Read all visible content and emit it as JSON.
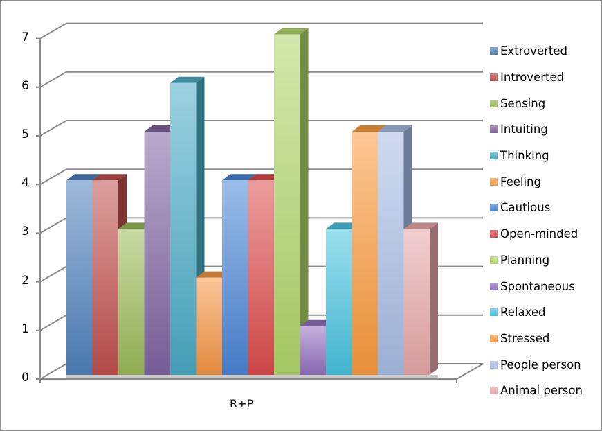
{
  "chart_data": {
    "type": "bar",
    "title": "",
    "xlabel": "",
    "ylabel": "",
    "categories": [
      "R+P"
    ],
    "ylim": [
      0,
      7
    ],
    "yticks": [
      0,
      1,
      2,
      3,
      4,
      5,
      6,
      7
    ],
    "grid": true,
    "legend_position": "right",
    "style": "3d-clustered-column",
    "series": [
      {
        "name": "Extroverted",
        "values": [
          4
        ],
        "color": "#4f81bd"
      },
      {
        "name": "Introverted",
        "values": [
          4
        ],
        "color": "#c0504d"
      },
      {
        "name": "Sensing",
        "values": [
          3
        ],
        "color": "#9bbb59"
      },
      {
        "name": "Intuiting",
        "values": [
          5
        ],
        "color": "#8064a2"
      },
      {
        "name": "Thinking",
        "values": [
          6
        ],
        "color": "#4bacc6"
      },
      {
        "name": "Feeling",
        "values": [
          2
        ],
        "color": "#f79646"
      },
      {
        "name": "Cautious",
        "values": [
          4
        ],
        "color": "#4a86d6"
      },
      {
        "name": "Open-minded",
        "values": [
          4
        ],
        "color": "#de4c4c"
      },
      {
        "name": "Planning",
        "values": [
          7
        ],
        "color": "#b1d66a"
      },
      {
        "name": "Spontaneous",
        "values": [
          1
        ],
        "color": "#9470c0"
      },
      {
        "name": "Relaxed",
        "values": [
          3
        ],
        "color": "#48c4e0"
      },
      {
        "name": "Stressed",
        "values": [
          5
        ],
        "color": "#fb9a3c"
      },
      {
        "name": "People person",
        "values": [
          5
        ],
        "color": "#a9bde6"
      },
      {
        "name": "Animal person",
        "values": [
          3
        ],
        "color": "#e8a8a8"
      }
    ]
  },
  "axis": {
    "tick_labels": [
      "0",
      "1",
      "2",
      "3",
      "4",
      "5",
      "6",
      "7"
    ],
    "category_label": "R+P"
  }
}
